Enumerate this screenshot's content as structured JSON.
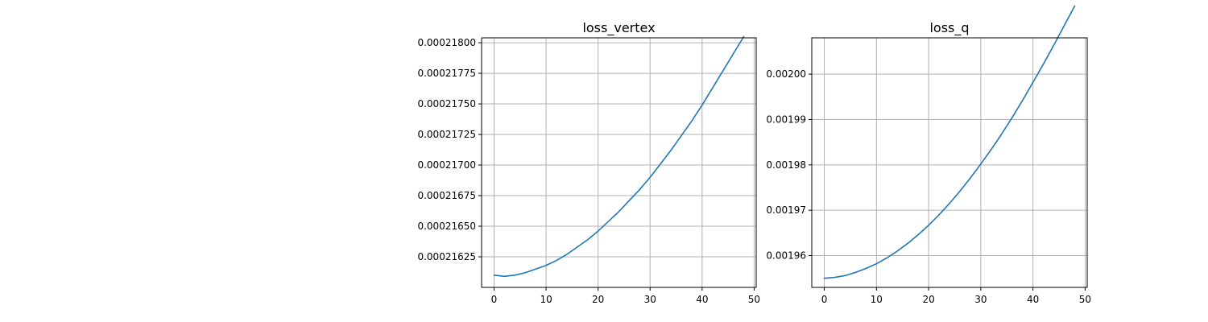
{
  "chart_data": [
    {
      "type": "line",
      "title": "loss_vertex",
      "xlim": [
        -2.4,
        50.4
      ],
      "ylim": [
        0.000216,
        0.00021804
      ],
      "xticks": [
        0,
        10,
        20,
        30,
        40,
        50
      ],
      "yticks": [
        0.00021625,
        0.0002165,
        0.00021675,
        0.000217,
        0.00021725,
        0.0002175,
        0.00021775,
        0.000218
      ],
      "ytick_labels": [
        "0.00021625",
        "0.00021650",
        "0.00021675",
        "0.00021700",
        "0.00021725",
        "0.00021750",
        "0.00021775",
        "0.00021800"
      ],
      "xtick_labels": [
        "0",
        "10",
        "20",
        "30",
        "40",
        "50"
      ],
      "grid": true,
      "series": [
        {
          "color": "#1f77b4",
          "x": [
            0,
            2,
            4,
            6,
            8,
            10,
            12,
            14,
            16,
            18,
            20,
            22,
            24,
            26,
            28,
            30,
            32,
            34,
            36,
            38,
            40,
            42,
            44,
            46,
            48
          ],
          "y": [
            0.0002161,
            0.00021609,
            0.0002161,
            0.00021612,
            0.00021615,
            0.00021618,
            0.00021622,
            0.00021627,
            0.00021633,
            0.00021639,
            0.00021646,
            0.00021654,
            0.00021662,
            0.00021671,
            0.0002168,
            0.0002169,
            0.00021701,
            0.00021712,
            0.00021724,
            0.00021736,
            0.00021749,
            0.00021763,
            0.00021777,
            0.00021791,
            0.00021805
          ]
        }
      ]
    },
    {
      "type": "line",
      "title": "loss_q",
      "xlim": [
        -2.4,
        50.4
      ],
      "ylim": [
        0.001953,
        0.002008
      ],
      "xticks": [
        0,
        10,
        20,
        30,
        40,
        50
      ],
      "yticks": [
        0.00196,
        0.00197,
        0.00198,
        0.00199,
        0.002
      ],
      "ytick_labels": [
        "0.00196",
        "0.00197",
        "0.00198",
        "0.00199",
        "0.00200"
      ],
      "xtick_labels": [
        "0",
        "10",
        "20",
        "30",
        "40",
        "50"
      ],
      "grid": true,
      "series": [
        {
          "color": "#1f77b4",
          "x": [
            0,
            2,
            4,
            6,
            8,
            10,
            12,
            14,
            16,
            18,
            20,
            22,
            24,
            26,
            28,
            30,
            32,
            34,
            36,
            38,
            40,
            42,
            44,
            46,
            48
          ],
          "y": [
            0.001955,
            0.0019552,
            0.0019556,
            0.0019563,
            0.0019572,
            0.0019582,
            0.0019595,
            0.001961,
            0.0019627,
            0.0019646,
            0.0019667,
            0.001969,
            0.0019715,
            0.0019742,
            0.0019771,
            0.0019802,
            0.0019834,
            0.0019868,
            0.0019904,
            0.0019942,
            0.0019982,
            0.0020022,
            0.0020064,
            0.0020107,
            0.002015
          ]
        }
      ]
    }
  ]
}
